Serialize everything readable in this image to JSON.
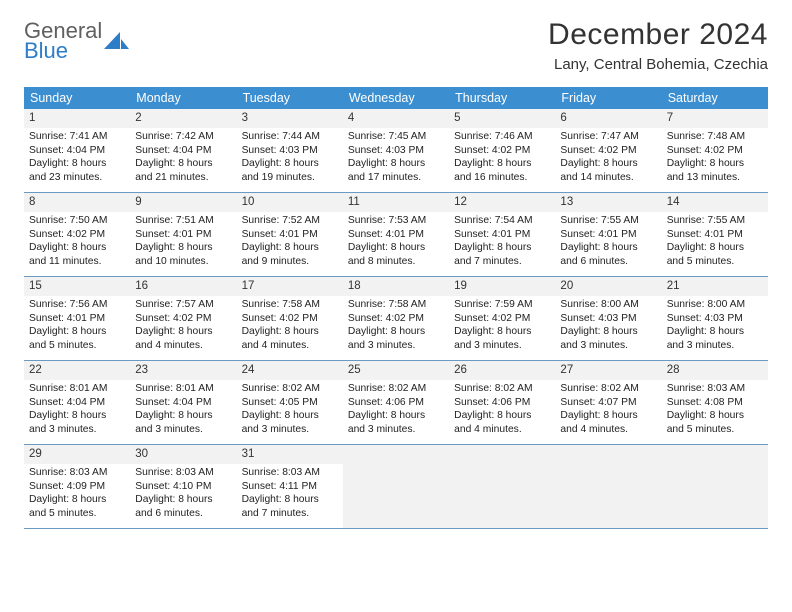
{
  "brand": {
    "line1": "General",
    "line2": "Blue"
  },
  "title": "December 2024",
  "location": "Lany, Central Bohemia, Czechia",
  "colors": {
    "header_bar": "#3b8ed0",
    "daynum_bg": "#f2f2f2",
    "rule": "#6a9bc4",
    "text": "#222222",
    "brand_gray": "#606060",
    "brand_blue": "#2d7dc7",
    "page_bg": "#ffffff"
  },
  "weekdays": [
    "Sunday",
    "Monday",
    "Tuesday",
    "Wednesday",
    "Thursday",
    "Friday",
    "Saturday"
  ],
  "days": [
    {
      "n": "1",
      "sr": "7:41 AM",
      "ss": "4:04 PM",
      "dl": "8 hours and 23 minutes."
    },
    {
      "n": "2",
      "sr": "7:42 AM",
      "ss": "4:04 PM",
      "dl": "8 hours and 21 minutes."
    },
    {
      "n": "3",
      "sr": "7:44 AM",
      "ss": "4:03 PM",
      "dl": "8 hours and 19 minutes."
    },
    {
      "n": "4",
      "sr": "7:45 AM",
      "ss": "4:03 PM",
      "dl": "8 hours and 17 minutes."
    },
    {
      "n": "5",
      "sr": "7:46 AM",
      "ss": "4:02 PM",
      "dl": "8 hours and 16 minutes."
    },
    {
      "n": "6",
      "sr": "7:47 AM",
      "ss": "4:02 PM",
      "dl": "8 hours and 14 minutes."
    },
    {
      "n": "7",
      "sr": "7:48 AM",
      "ss": "4:02 PM",
      "dl": "8 hours and 13 minutes."
    },
    {
      "n": "8",
      "sr": "7:50 AM",
      "ss": "4:02 PM",
      "dl": "8 hours and 11 minutes."
    },
    {
      "n": "9",
      "sr": "7:51 AM",
      "ss": "4:01 PM",
      "dl": "8 hours and 10 minutes."
    },
    {
      "n": "10",
      "sr": "7:52 AM",
      "ss": "4:01 PM",
      "dl": "8 hours and 9 minutes."
    },
    {
      "n": "11",
      "sr": "7:53 AM",
      "ss": "4:01 PM",
      "dl": "8 hours and 8 minutes."
    },
    {
      "n": "12",
      "sr": "7:54 AM",
      "ss": "4:01 PM",
      "dl": "8 hours and 7 minutes."
    },
    {
      "n": "13",
      "sr": "7:55 AM",
      "ss": "4:01 PM",
      "dl": "8 hours and 6 minutes."
    },
    {
      "n": "14",
      "sr": "7:55 AM",
      "ss": "4:01 PM",
      "dl": "8 hours and 5 minutes."
    },
    {
      "n": "15",
      "sr": "7:56 AM",
      "ss": "4:01 PM",
      "dl": "8 hours and 5 minutes."
    },
    {
      "n": "16",
      "sr": "7:57 AM",
      "ss": "4:02 PM",
      "dl": "8 hours and 4 minutes."
    },
    {
      "n": "17",
      "sr": "7:58 AM",
      "ss": "4:02 PM",
      "dl": "8 hours and 4 minutes."
    },
    {
      "n": "18",
      "sr": "7:58 AM",
      "ss": "4:02 PM",
      "dl": "8 hours and 3 minutes."
    },
    {
      "n": "19",
      "sr": "7:59 AM",
      "ss": "4:02 PM",
      "dl": "8 hours and 3 minutes."
    },
    {
      "n": "20",
      "sr": "8:00 AM",
      "ss": "4:03 PM",
      "dl": "8 hours and 3 minutes."
    },
    {
      "n": "21",
      "sr": "8:00 AM",
      "ss": "4:03 PM",
      "dl": "8 hours and 3 minutes."
    },
    {
      "n": "22",
      "sr": "8:01 AM",
      "ss": "4:04 PM",
      "dl": "8 hours and 3 minutes."
    },
    {
      "n": "23",
      "sr": "8:01 AM",
      "ss": "4:04 PM",
      "dl": "8 hours and 3 minutes."
    },
    {
      "n": "24",
      "sr": "8:02 AM",
      "ss": "4:05 PM",
      "dl": "8 hours and 3 minutes."
    },
    {
      "n": "25",
      "sr": "8:02 AM",
      "ss": "4:06 PM",
      "dl": "8 hours and 3 minutes."
    },
    {
      "n": "26",
      "sr": "8:02 AM",
      "ss": "4:06 PM",
      "dl": "8 hours and 4 minutes."
    },
    {
      "n": "27",
      "sr": "8:02 AM",
      "ss": "4:07 PM",
      "dl": "8 hours and 4 minutes."
    },
    {
      "n": "28",
      "sr": "8:03 AM",
      "ss": "4:08 PM",
      "dl": "8 hours and 5 minutes."
    },
    {
      "n": "29",
      "sr": "8:03 AM",
      "ss": "4:09 PM",
      "dl": "8 hours and 5 minutes."
    },
    {
      "n": "30",
      "sr": "8:03 AM",
      "ss": "4:10 PM",
      "dl": "8 hours and 6 minutes."
    },
    {
      "n": "31",
      "sr": "8:03 AM",
      "ss": "4:11 PM",
      "dl": "8 hours and 7 minutes."
    }
  ],
  "labels": {
    "sunrise": "Sunrise:",
    "sunset": "Sunset:",
    "daylight": "Daylight:"
  },
  "layout": {
    "first_weekday_index": 0,
    "total_cells": 35
  }
}
